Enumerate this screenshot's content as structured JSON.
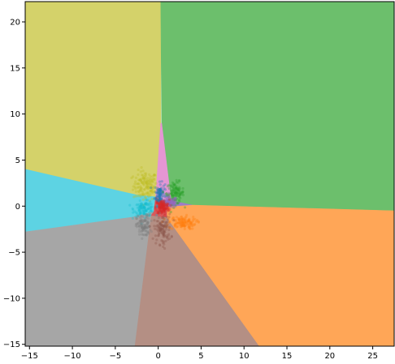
{
  "chart_data": {
    "type": "scatter",
    "title": "",
    "xlabel": "",
    "ylabel": "",
    "xlim": [
      -15.5,
      27.5
    ],
    "ylim": [
      -15.2,
      22.2
    ],
    "x_ticks": [
      -15,
      -10,
      -5,
      0,
      5,
      10,
      15,
      20,
      25
    ],
    "y_ticks": [
      -15,
      -10,
      -5,
      0,
      5,
      10,
      15,
      20
    ],
    "grid": false,
    "legend": "none",
    "regions": [
      {
        "color": "#d4d26a",
        "polygon": [
          [
            -15.5,
            22.2
          ],
          [
            0.3,
            22.2
          ],
          [
            0.3,
            9.0
          ],
          [
            -0.3,
            1.0
          ],
          [
            -2.5,
            1.2
          ],
          [
            -15.5,
            4.0
          ]
        ]
      },
      {
        "color": "#6cbf6c",
        "polygon": [
          [
            0.3,
            22.2
          ],
          [
            27.5,
            22.2
          ],
          [
            27.5,
            -0.5
          ],
          [
            4.0,
            0.1
          ],
          [
            1.5,
            0.6
          ],
          [
            0.4,
            9.0
          ]
        ]
      },
      {
        "color": "#e596d3",
        "polygon": [
          [
            0.3,
            9.0
          ],
          [
            0.4,
            9.0
          ],
          [
            1.5,
            0.6
          ],
          [
            0.0,
            0.8
          ],
          [
            -0.3,
            1.0
          ]
        ]
      },
      {
        "color": "#9d7dc8",
        "polygon": [
          [
            1.5,
            0.6
          ],
          [
            4.0,
            0.1
          ],
          [
            1.0,
            -0.1
          ],
          [
            0.0,
            0.8
          ]
        ]
      },
      {
        "color": "#5dd3e3",
        "polygon": [
          [
            -15.5,
            4.0
          ],
          [
            -2.5,
            1.2
          ],
          [
            -0.3,
            1.0
          ],
          [
            -0.5,
            -0.6
          ],
          [
            -3.0,
            -1.2
          ],
          [
            -15.5,
            -2.8
          ]
        ]
      },
      {
        "color": "#a6a6a6",
        "polygon": [
          [
            -15.5,
            -2.8
          ],
          [
            -3.0,
            -1.2
          ],
          [
            -0.5,
            -0.6
          ],
          [
            -0.8,
            -1.0
          ],
          [
            -2.7,
            -15.2
          ],
          [
            -15.5,
            -15.2
          ]
        ]
      },
      {
        "color": "#b48f84",
        "polygon": [
          [
            -0.8,
            -1.0
          ],
          [
            1.0,
            -1.2
          ],
          [
            11.8,
            -15.2
          ],
          [
            -2.7,
            -15.2
          ]
        ]
      },
      {
        "color": "#ffa657",
        "polygon": [
          [
            4.0,
            0.1
          ],
          [
            27.5,
            -0.5
          ],
          [
            27.5,
            -15.2
          ],
          [
            11.8,
            -15.2
          ],
          [
            1.0,
            -1.2
          ],
          [
            1.0,
            -0.1
          ]
        ]
      },
      {
        "color": "#d9595a",
        "polygon": [
          [
            -0.5,
            -0.6
          ],
          [
            -0.3,
            1.0
          ],
          [
            0.0,
            0.8
          ],
          [
            1.0,
            -0.1
          ],
          [
            1.0,
            -1.2
          ],
          [
            -0.8,
            -1.0
          ]
        ]
      }
    ],
    "series": [
      {
        "color": "#bcbd22",
        "cx": -1.5,
        "cy": 2.2,
        "sx": 0.7,
        "sy": 0.8,
        "n": 140
      },
      {
        "color": "#1f77b4",
        "cx": 0.2,
        "cy": 1.3,
        "sx": 0.3,
        "sy": 0.6,
        "n": 100
      },
      {
        "color": "#2ca02c",
        "cx": 2.0,
        "cy": 1.4,
        "sx": 0.5,
        "sy": 0.6,
        "n": 120
      },
      {
        "color": "#9467bd",
        "cx": 1.4,
        "cy": 0.4,
        "sx": 0.4,
        "sy": 0.3,
        "n": 70
      },
      {
        "color": "#17becf",
        "cx": -1.6,
        "cy": -0.3,
        "sx": 0.6,
        "sy": 0.4,
        "n": 110
      },
      {
        "color": "#d62728",
        "cx": 0.5,
        "cy": -0.1,
        "sx": 0.4,
        "sy": 0.4,
        "n": 130
      },
      {
        "color": "#ff7f0e",
        "cx": 2.8,
        "cy": -1.8,
        "sx": 0.8,
        "sy": 0.35,
        "n": 120
      },
      {
        "color": "#7f7f7f",
        "cx": -1.7,
        "cy": -2.2,
        "sx": 0.4,
        "sy": 0.6,
        "n": 100
      },
      {
        "color": "#8c564b",
        "cx": 0.5,
        "cy": -2.5,
        "sx": 0.5,
        "sy": 0.8,
        "n": 110
      }
    ]
  }
}
